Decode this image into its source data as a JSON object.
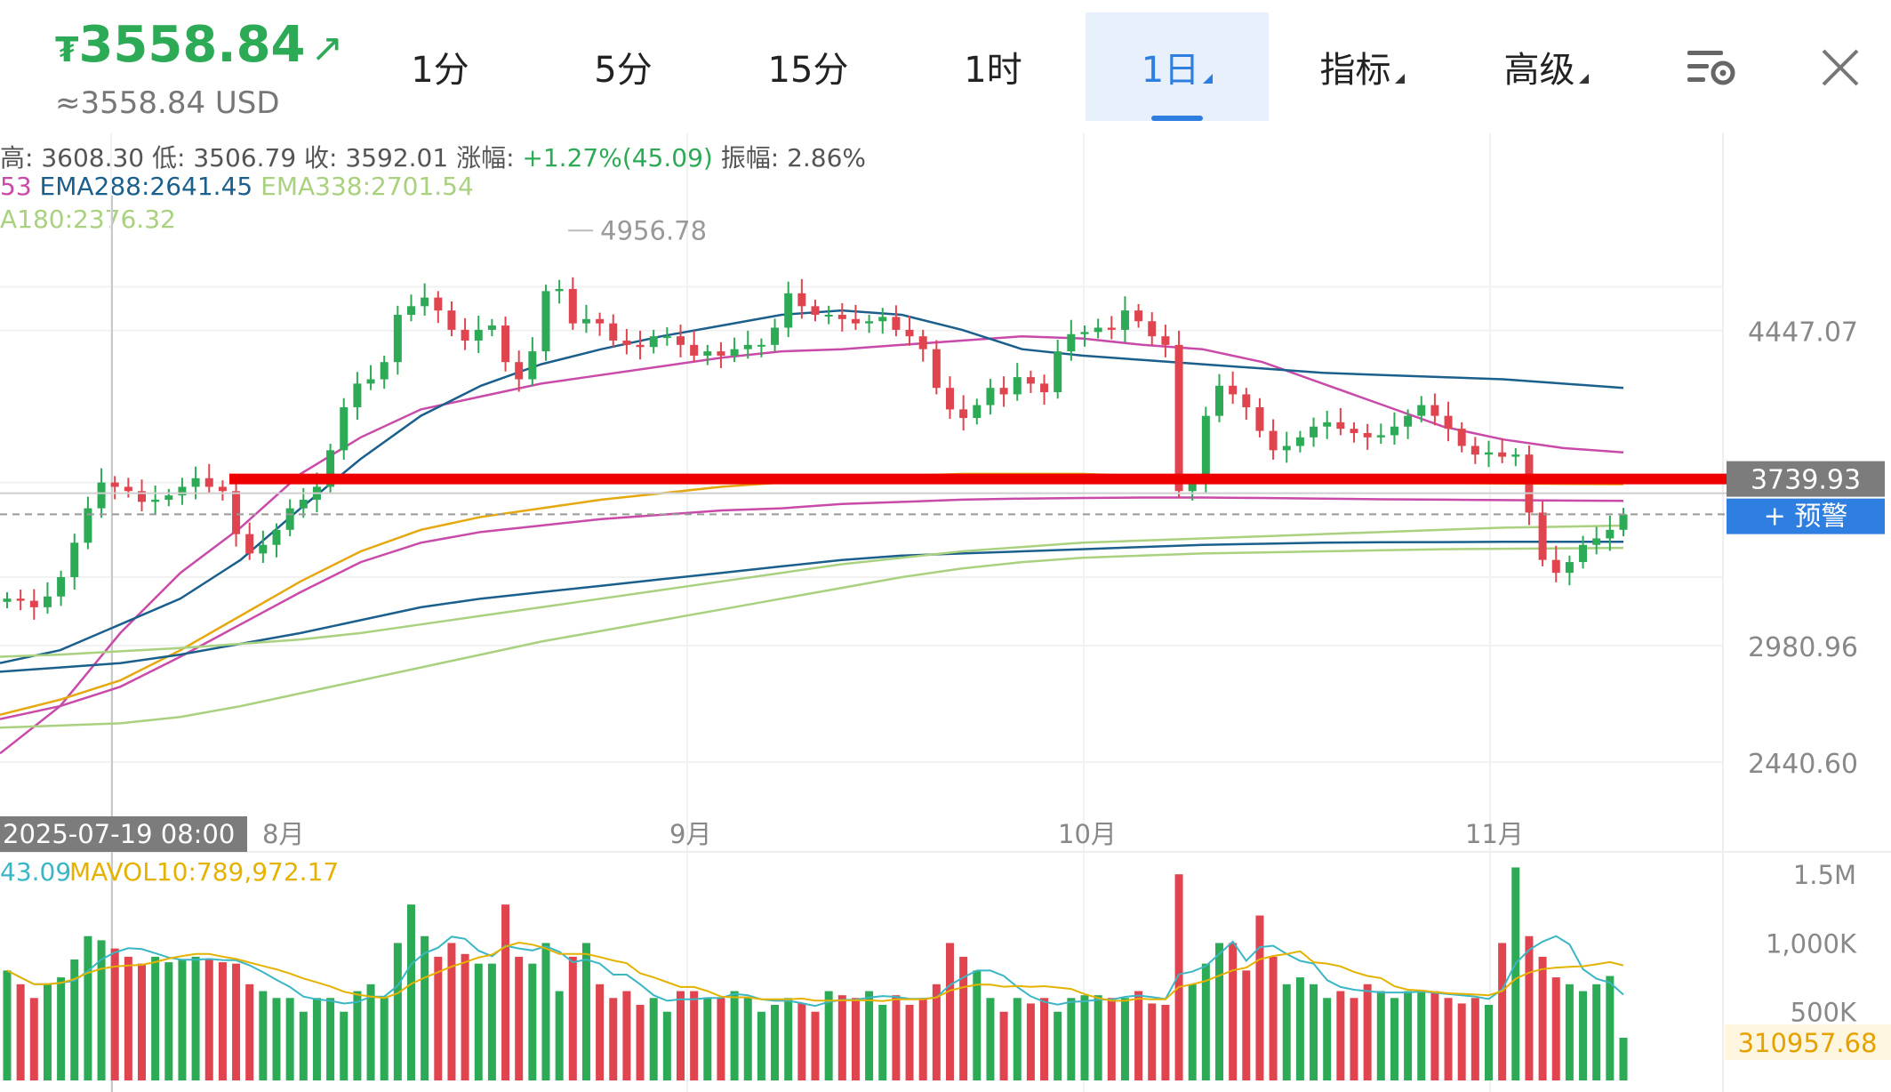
{
  "header": {
    "currency_symbol": "₮",
    "price": "3558.84",
    "trend_arrow": "↗",
    "usd_price": "≈3558.84 USD",
    "tabs": [
      {
        "label": "1分",
        "active": false,
        "dropdown": false
      },
      {
        "label": "5分",
        "active": false,
        "dropdown": false
      },
      {
        "label": "15分",
        "active": false,
        "dropdown": false
      },
      {
        "label": "1时",
        "active": false,
        "dropdown": false
      },
      {
        "label": "1日",
        "active": true,
        "dropdown": true
      },
      {
        "label": "指标",
        "active": false,
        "dropdown": true
      },
      {
        "label": "高级",
        "active": false,
        "dropdown": true
      }
    ],
    "icons": [
      "chart-settings-icon",
      "close-icon"
    ]
  },
  "info": {
    "line1_prefix": "高:  3608.30 低:  3506.79 收:  3592.01 涨幅:",
    "line1_change": "+1.27%(45.09)",
    "line1_suffix": "振幅:  2.86%",
    "line2_a": "53",
    "line2_b": "EMA288:2641.45",
    "line2_c": "EMA338:2701.54",
    "line3": "A180:2376.32",
    "volume_a": "43.09",
    "volume_b": "MAVOL10:789,972.17"
  },
  "colors": {
    "up": "#2daa55",
    "down": "#e0444f",
    "accent": "#2f7fe0",
    "support_line": "#ee0000",
    "ema_pink": "#c94aa8",
    "ema_navy": "#1b5f8c",
    "ema_gold": "#e5a80f",
    "ema_lightgreen": "#a9d17f",
    "mavol_teal": "#3ab6c5",
    "mavol_gold": "#e5b200"
  },
  "chart_data": {
    "type": "candlestick",
    "y_ticks": [
      "4447.07",
      "2980.96",
      "2440.60"
    ],
    "ylim": [
      2200,
      4950
    ],
    "x_labels": [
      "8月",
      "9月",
      "10月",
      "11月"
    ],
    "crosshair_date": "2025-07-19 08:00",
    "max_marker": "4956.78",
    "price_tag": "3739.93",
    "alert_label": "+ 预警",
    "support_level": 3739.93,
    "current_price": 3592.01,
    "volume_ticks": [
      "1.5M",
      "1,000K",
      "500K"
    ],
    "volume_tag": "310957.68",
    "volume_max": 1650000,
    "closes": [
      3200,
      3190,
      3160,
      3210,
      3300,
      3460,
      3620,
      3740,
      3720,
      3700,
      3650,
      3660,
      3680,
      3720,
      3760,
      3720,
      3700,
      3500,
      3410,
      3450,
      3520,
      3620,
      3660,
      3720,
      3890,
      4090,
      4200,
      4220,
      4300,
      4520,
      4560,
      4600,
      4540,
      4450,
      4400,
      4450,
      4470,
      4300,
      4220,
      4350,
      4630,
      4640,
      4480,
      4500,
      4480,
      4400,
      4380,
      4370,
      4420,
      4420,
      4380,
      4330,
      4350,
      4330,
      4360,
      4380,
      4380,
      4460,
      4620,
      4560,
      4520,
      4520,
      4500,
      4480,
      4490,
      4510,
      4450,
      4420,
      4360,
      4180,
      4080,
      4040,
      4100,
      4180,
      4150,
      4230,
      4200,
      4160,
      4350,
      4430,
      4440,
      4460,
      4450,
      4540,
      4490,
      4420,
      4380,
      3700,
      3750,
      4050,
      4190,
      4150,
      4090,
      3980,
      3890,
      3910,
      3950,
      4000,
      4020,
      3990,
      3970,
      3950,
      3960,
      4000,
      4050,
      4100,
      4050,
      3990,
      3910,
      3870,
      3880,
      3860,
      3870,
      3600,
      3380,
      3320,
      3370,
      3450,
      3480,
      3520,
      3592
    ],
    "volumes": [
      800000,
      700000,
      600000,
      700000,
      750000,
      880000,
      1050000,
      1020000,
      960000,
      900000,
      850000,
      900000,
      860000,
      880000,
      900000,
      880000,
      860000,
      850000,
      700000,
      650000,
      600000,
      600000,
      500000,
      600000,
      600000,
      500000,
      650000,
      700000,
      600000,
      1000000,
      1280000,
      1050000,
      900000,
      1000000,
      920000,
      850000,
      850000,
      1280000,
      900000,
      850000,
      1000000,
      650000,
      900000,
      1000000,
      700000,
      600000,
      650000,
      550000,
      600000,
      500000,
      650000,
      650000,
      600000,
      600000,
      650000,
      600000,
      500000,
      550000,
      600000,
      560000,
      500000,
      650000,
      620000,
      600000,
      650000,
      550000,
      620000,
      550000,
      600000,
      700000,
      1000000,
      900000,
      800000,
      600000,
      500000,
      600000,
      560000,
      600000,
      500000,
      600000,
      620000,
      620000,
      600000,
      600000,
      650000,
      560000,
      550000,
      1500000,
      700000,
      850000,
      1000000,
      1000000,
      800000,
      1200000,
      900000,
      700000,
      750000,
      700000,
      600000,
      650000,
      600000,
      700000,
      650000,
      600000,
      650000,
      640000,
      650000,
      600000,
      560000,
      600000,
      550000,
      1000000,
      1550000,
      1050000,
      900000,
      750000,
      700000,
      650000,
      700000,
      760000,
      310957
    ],
    "ma_lines": [
      {
        "name": "",
        "color": "#c94aa8",
        "values": [
          2480,
          2700,
          3040,
          3320,
          3530,
          3780,
          3950,
          4080,
          4140,
          4200,
          4240,
          4280,
          4320,
          4350,
          4360,
          4380,
          4400,
          4420,
          4410,
          4380,
          4360,
          4300,
          4200,
          4100,
          4000,
          3940,
          3900,
          3880
        ]
      },
      {
        "name": "",
        "color": "#1b5f8c",
        "values": [
          2900,
          2960,
          3080,
          3200,
          3380,
          3620,
          3850,
          4050,
          4190,
          4290,
          4360,
          4420,
          4470,
          4520,
          4540,
          4520,
          4450,
          4360,
          4330,
          4310,
          4290,
          4270,
          4250,
          4240,
          4230,
          4220,
          4200,
          4180
        ]
      },
      {
        "name": "",
        "color": "#e5a80f",
        "values": [
          2660,
          2730,
          2820,
          2960,
          3120,
          3280,
          3420,
          3520,
          3580,
          3620,
          3660,
          3690,
          3720,
          3740,
          3760,
          3770,
          3780,
          3780,
          3780,
          3770,
          3760,
          3750,
          3745,
          3740,
          3738,
          3736,
          3734,
          3732
        ]
      },
      {
        "name": "",
        "color": "#c94aa8",
        "values": [
          2640,
          2700,
          2790,
          2930,
          3080,
          3230,
          3370,
          3460,
          3510,
          3540,
          3570,
          3590,
          3610,
          3620,
          3640,
          3650,
          3660,
          3665,
          3668,
          3670,
          3670,
          3668,
          3665,
          3662,
          3660,
          3658,
          3656,
          3655
        ]
      },
      {
        "name": "",
        "color": "#1b5f8c",
        "values": [
          2860,
          2880,
          2900,
          2940,
          2990,
          3040,
          3100,
          3160,
          3200,
          3230,
          3260,
          3290,
          3320,
          3350,
          3380,
          3400,
          3410,
          3420,
          3430,
          3440,
          3450,
          3455,
          3460,
          3462,
          3463,
          3464,
          3464,
          3464
        ]
      },
      {
        "name": "",
        "color": "#a9d17f",
        "values": [
          2930,
          2940,
          2955,
          2970,
          2990,
          3010,
          3040,
          3080,
          3120,
          3160,
          3200,
          3240,
          3280,
          3320,
          3360,
          3390,
          3420,
          3440,
          3460,
          3470,
          3480,
          3490,
          3500,
          3510,
          3520,
          3530,
          3535,
          3540
        ]
      },
      {
        "name": "",
        "color": "#a9d17f",
        "values": [
          2600,
          2610,
          2620,
          2650,
          2700,
          2760,
          2820,
          2880,
          2940,
          3000,
          3050,
          3100,
          3150,
          3200,
          3250,
          3300,
          3340,
          3370,
          3390,
          3400,
          3410,
          3415,
          3420,
          3425,
          3430,
          3432,
          3434,
          3436
        ]
      }
    ]
  }
}
